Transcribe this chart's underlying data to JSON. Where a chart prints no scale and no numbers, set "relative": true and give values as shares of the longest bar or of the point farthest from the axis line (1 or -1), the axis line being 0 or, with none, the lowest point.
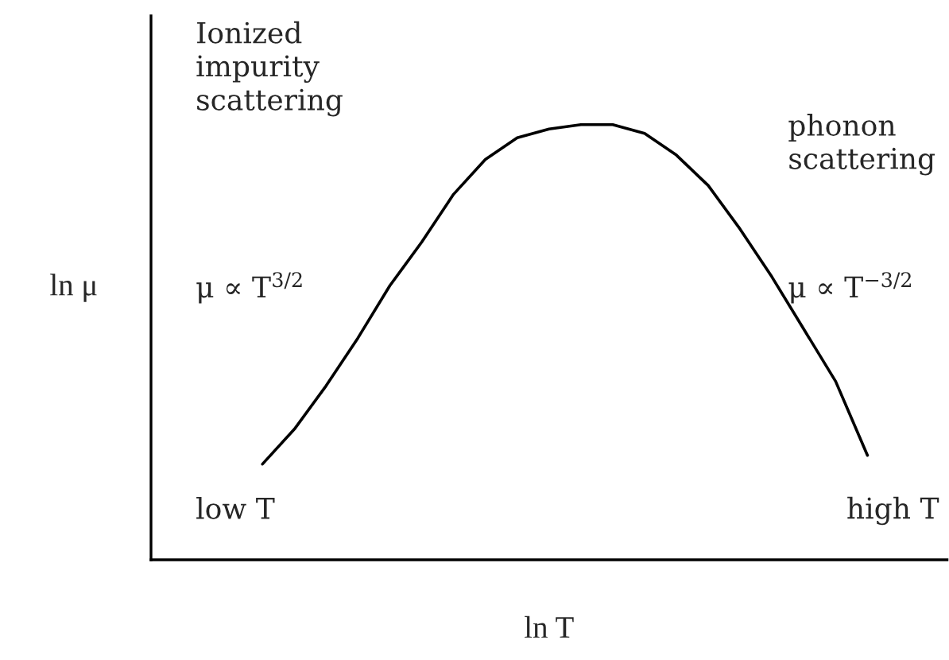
{
  "chart_data": {
    "type": "line",
    "relative": true,
    "xlabel": "ln T",
    "ylabel": "ln μ",
    "categories": [
      null,
      null,
      null,
      null,
      null,
      null,
      null,
      null,
      null,
      null,
      null,
      null,
      null,
      null,
      null,
      null,
      null,
      null,
      null,
      null,
      null,
      null,
      null,
      null,
      null
    ],
    "series": [
      {
        "color": "#000000",
        "values": [
          null,
          null,
          null,
          0.22,
          0.3,
          0.4,
          0.51,
          0.63,
          0.73,
          0.84,
          0.92,
          0.97,
          0.99,
          1.0,
          1.0,
          0.98,
          0.93,
          0.86,
          0.76,
          0.65,
          0.53,
          0.41,
          0.24,
          null,
          null
        ]
      }
    ],
    "annotations": [
      "Ionized\nimpurity\nscattering",
      "μ ∝ T$^{3/2}$",
      "phonon\nscattering",
      "μ ∝ T$^{−3/2}$",
      "low T",
      "high T"
    ],
    "grid": false,
    "legend": false,
    "marker": "none",
    "line_style": "solid"
  }
}
